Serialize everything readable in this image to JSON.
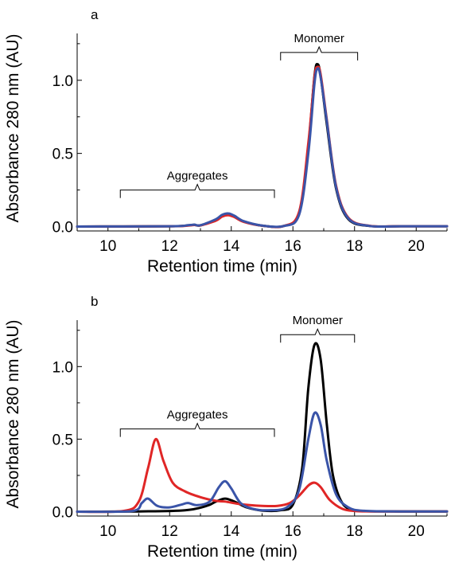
{
  "chart_data": [
    {
      "type": "line",
      "panel_label": "a",
      "xlabel": "Retention time (min)",
      "ylabel": "Absorbance 280 nm (AU)",
      "xlim": [
        9,
        21
      ],
      "ylim": [
        -0.03,
        1.32
      ],
      "xticks": [
        10,
        12,
        14,
        16,
        18,
        20
      ],
      "yticks": [
        0.0,
        0.5,
        1.0
      ],
      "xtick_labels": [
        "10",
        "12",
        "14",
        "16",
        "18",
        "20"
      ],
      "ytick_labels": [
        "0.0",
        "0.5",
        "1.0"
      ],
      "grid": false,
      "legend": "none",
      "annotations": [
        {
          "text": "Aggregates",
          "x_start": 10.4,
          "x_end": 15.4,
          "y": 0.25
        },
        {
          "text": "Monomer",
          "x_start": 15.6,
          "x_end": 18.1,
          "y": 1.19
        }
      ],
      "series": [
        {
          "color": "#000000",
          "x": [
            9.0,
            12.0,
            12.6,
            12.8,
            13.0,
            13.5,
            13.7,
            13.9,
            14.1,
            14.4,
            15.0,
            15.7,
            16.2,
            16.5,
            16.7,
            16.8,
            16.9,
            17.1,
            17.4,
            17.8,
            18.5,
            19.5,
            21.0
          ],
          "y": [
            0.0,
            0.002,
            0.008,
            0.012,
            0.008,
            0.045,
            0.075,
            0.085,
            0.07,
            0.035,
            0.006,
            0.004,
            0.09,
            0.55,
            1.03,
            1.11,
            1.03,
            0.7,
            0.26,
            0.05,
            0.004,
            0.002,
            0.002
          ]
        },
        {
          "color": "#e02626",
          "x": [
            9.0,
            12.0,
            12.6,
            12.8,
            13.0,
            13.5,
            13.7,
            13.9,
            14.1,
            14.4,
            15.0,
            15.7,
            16.2,
            16.5,
            16.7,
            16.8,
            16.9,
            17.1,
            17.4,
            17.8,
            18.5,
            19.5,
            21.0
          ],
          "y": [
            0.0,
            0.002,
            0.007,
            0.011,
            0.008,
            0.04,
            0.068,
            0.078,
            0.065,
            0.032,
            0.006,
            0.004,
            0.1,
            0.57,
            1.02,
            1.09,
            1.04,
            0.73,
            0.28,
            0.06,
            0.005,
            0.002,
            0.002
          ]
        },
        {
          "color": "#3a54a8",
          "x": [
            9.0,
            12.0,
            12.6,
            12.8,
            13.0,
            13.5,
            13.7,
            13.9,
            14.1,
            14.4,
            15.0,
            15.7,
            16.2,
            16.5,
            16.7,
            16.8,
            16.9,
            17.1,
            17.4,
            17.8,
            18.5,
            19.5,
            21.0
          ],
          "y": [
            0.0,
            0.002,
            0.009,
            0.013,
            0.009,
            0.05,
            0.08,
            0.09,
            0.074,
            0.037,
            0.007,
            0.004,
            0.08,
            0.5,
            0.98,
            1.08,
            1.02,
            0.72,
            0.27,
            0.055,
            0.004,
            0.002,
            0.002
          ]
        }
      ]
    },
    {
      "type": "line",
      "panel_label": "b",
      "xlabel": "Retention time (min)",
      "ylabel": "Absorbance 280 nm (AU)",
      "xlim": [
        9,
        21
      ],
      "ylim": [
        -0.03,
        1.32
      ],
      "xticks": [
        10,
        12,
        14,
        16,
        18,
        20
      ],
      "yticks": [
        0.0,
        0.5,
        1.0
      ],
      "xtick_labels": [
        "10",
        "12",
        "14",
        "16",
        "18",
        "20"
      ],
      "ytick_labels": [
        "0.0",
        "0.5",
        "1.0"
      ],
      "grid": false,
      "legend": "none",
      "annotations": [
        {
          "text": "Aggregates",
          "x_start": 10.4,
          "x_end": 15.4,
          "y": 0.57
        },
        {
          "text": "Monomer",
          "x_start": 15.6,
          "x_end": 18.0,
          "y": 1.22
        }
      ],
      "series": [
        {
          "color": "#000000",
          "x": [
            9.0,
            11.0,
            12.5,
            13.2,
            13.5,
            13.8,
            14.1,
            14.5,
            15.0,
            15.6,
            16.0,
            16.3,
            16.5,
            16.7,
            16.9,
            17.1,
            17.3,
            17.6,
            18.0,
            18.5,
            19.5,
            21.0
          ],
          "y": [
            0.0,
            0.002,
            0.01,
            0.04,
            0.07,
            0.09,
            0.07,
            0.03,
            0.008,
            0.01,
            0.05,
            0.3,
            0.85,
            1.15,
            1.05,
            0.6,
            0.25,
            0.06,
            0.01,
            0.003,
            0.002,
            0.002
          ]
        },
        {
          "color": "#e02626",
          "x": [
            9.0,
            10.5,
            11.0,
            11.3,
            11.55,
            11.8,
            12.1,
            12.5,
            13.0,
            13.5,
            13.8,
            14.2,
            14.6,
            15.0,
            15.5,
            15.9,
            16.2,
            16.5,
            16.7,
            16.9,
            17.2,
            17.6,
            18.0,
            18.5,
            19.5,
            21.0
          ],
          "y": [
            0.0,
            0.005,
            0.07,
            0.3,
            0.5,
            0.35,
            0.2,
            0.14,
            0.1,
            0.075,
            0.07,
            0.055,
            0.045,
            0.04,
            0.04,
            0.06,
            0.11,
            0.18,
            0.2,
            0.17,
            0.08,
            0.02,
            0.005,
            0.002,
            0.002,
            0.002
          ]
        },
        {
          "color": "#3a54a8",
          "x": [
            9.0,
            10.8,
            11.1,
            11.3,
            11.6,
            12.0,
            12.4,
            12.6,
            12.9,
            13.3,
            13.6,
            13.8,
            14.0,
            14.3,
            14.7,
            15.2,
            15.8,
            16.2,
            16.5,
            16.7,
            16.9,
            17.1,
            17.4,
            17.8,
            18.3,
            19.5,
            21.0
          ],
          "y": [
            0.0,
            0.005,
            0.06,
            0.09,
            0.04,
            0.03,
            0.05,
            0.06,
            0.045,
            0.07,
            0.17,
            0.21,
            0.16,
            0.06,
            0.02,
            0.01,
            0.03,
            0.15,
            0.5,
            0.68,
            0.6,
            0.35,
            0.12,
            0.03,
            0.006,
            0.002,
            0.002
          ]
        }
      ]
    }
  ]
}
